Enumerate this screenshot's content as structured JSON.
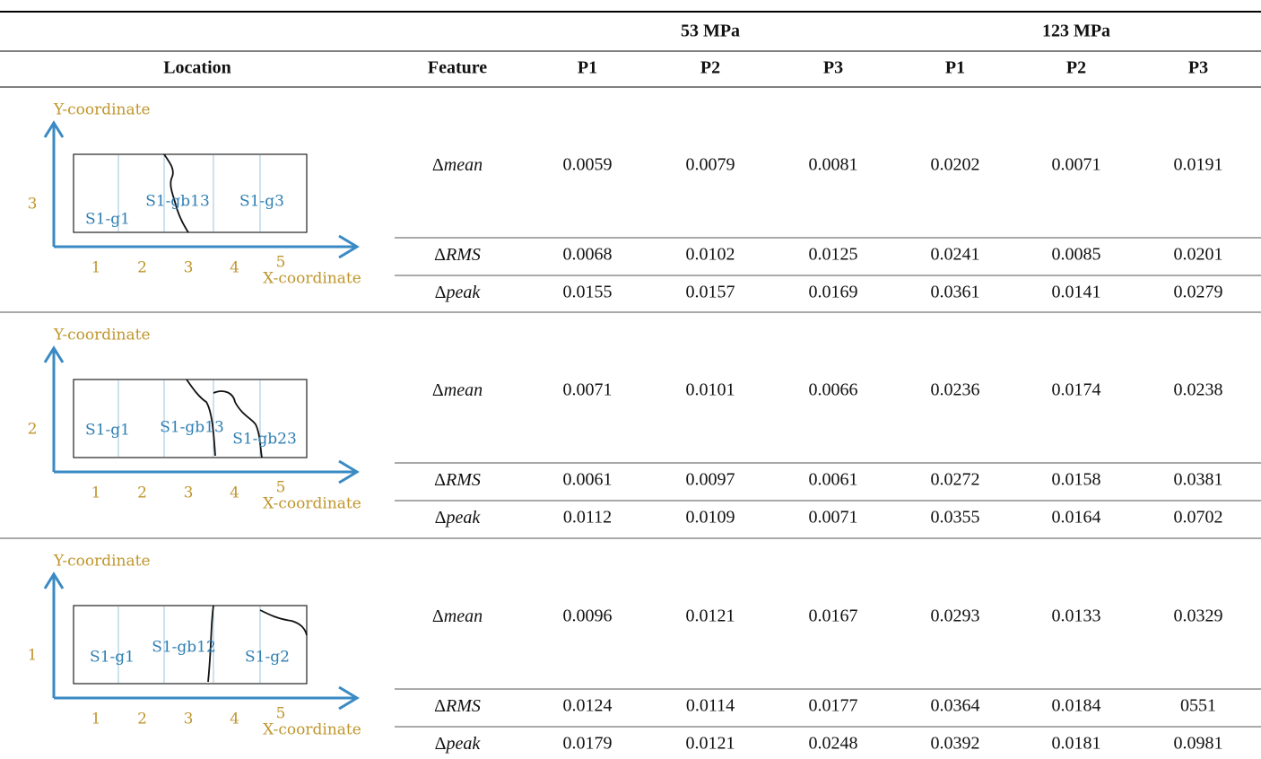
{
  "header": {
    "group_headers": [
      "53 MPa",
      "123 MPa"
    ],
    "columns": [
      "Location",
      "Feature",
      "P1",
      "P2",
      "P3",
      "P1",
      "P2",
      "P3"
    ]
  },
  "groups": [
    {
      "location": {
        "y_label": "Y-coordinate",
        "x_label": "X-coordinate",
        "row": "3",
        "x_ticks": [
          "1",
          "2",
          "3",
          "4",
          "5"
        ],
        "grains": [
          "S1-g1",
          "S1-gb13",
          "S1-g3"
        ]
      },
      "rows": [
        {
          "feature": {
            "symbol": "Δ",
            "name": "mean"
          },
          "values": [
            "0.0059",
            "0.0079",
            "0.0081",
            "0.0202",
            "0.0071",
            "0.0191"
          ]
        },
        {
          "feature": {
            "symbol": "Δ",
            "name": "RMS"
          },
          "values": [
            "0.0068",
            "0.0102",
            "0.0125",
            "0.0241",
            "0.0085",
            "0.0201"
          ]
        },
        {
          "feature": {
            "symbol": "Δ",
            "name": "peak"
          },
          "values": [
            "0.0155",
            "0.0157",
            "0.0169",
            "0.0361",
            "0.0141",
            "0.0279"
          ]
        }
      ]
    },
    {
      "location": {
        "y_label": "Y-coordinate",
        "x_label": "X-coordinate",
        "row": "2",
        "x_ticks": [
          "1",
          "2",
          "3",
          "4",
          "5"
        ],
        "grains": [
          "S1-g1",
          "S1-gb13",
          "S1-gb23"
        ]
      },
      "rows": [
        {
          "feature": {
            "symbol": "Δ",
            "name": "mean"
          },
          "values": [
            "0.0071",
            "0.0101",
            "0.0066",
            "0.0236",
            "0.0174",
            "0.0238"
          ]
        },
        {
          "feature": {
            "symbol": "Δ",
            "name": "RMS"
          },
          "values": [
            "0.0061",
            "0.0097",
            "0.0061",
            "0.0272",
            "0.0158",
            "0.0381"
          ]
        },
        {
          "feature": {
            "symbol": "Δ",
            "name": "peak"
          },
          "values": [
            "0.0112",
            "0.0109",
            "0.0071",
            "0.0355",
            "0.0164",
            "0.0702"
          ]
        }
      ]
    },
    {
      "location": {
        "y_label": "Y-coordinate",
        "x_label": "X-coordinate",
        "row": "1",
        "x_ticks": [
          "1",
          "2",
          "3",
          "4",
          "5"
        ],
        "grains": [
          "S1-g1",
          "S1-gb12",
          "S1-g2"
        ]
      },
      "rows": [
        {
          "feature": {
            "symbol": "Δ",
            "name": "mean"
          },
          "values": [
            "0.0096",
            "0.0121",
            "0.0167",
            "0.0293",
            "0.0133",
            "0.0329"
          ]
        },
        {
          "feature": {
            "symbol": "Δ",
            "name": "RMS"
          },
          "values": [
            "0.0124",
            "0.0114",
            "0.0177",
            "0.0364",
            "0.0184",
            "0551"
          ]
        },
        {
          "feature": {
            "symbol": "Δ",
            "name": "peak"
          },
          "values": [
            "0.0179",
            "0.0121",
            "0.0248",
            "0.0392",
            "0.0181",
            "0.0981"
          ]
        }
      ]
    }
  ]
}
